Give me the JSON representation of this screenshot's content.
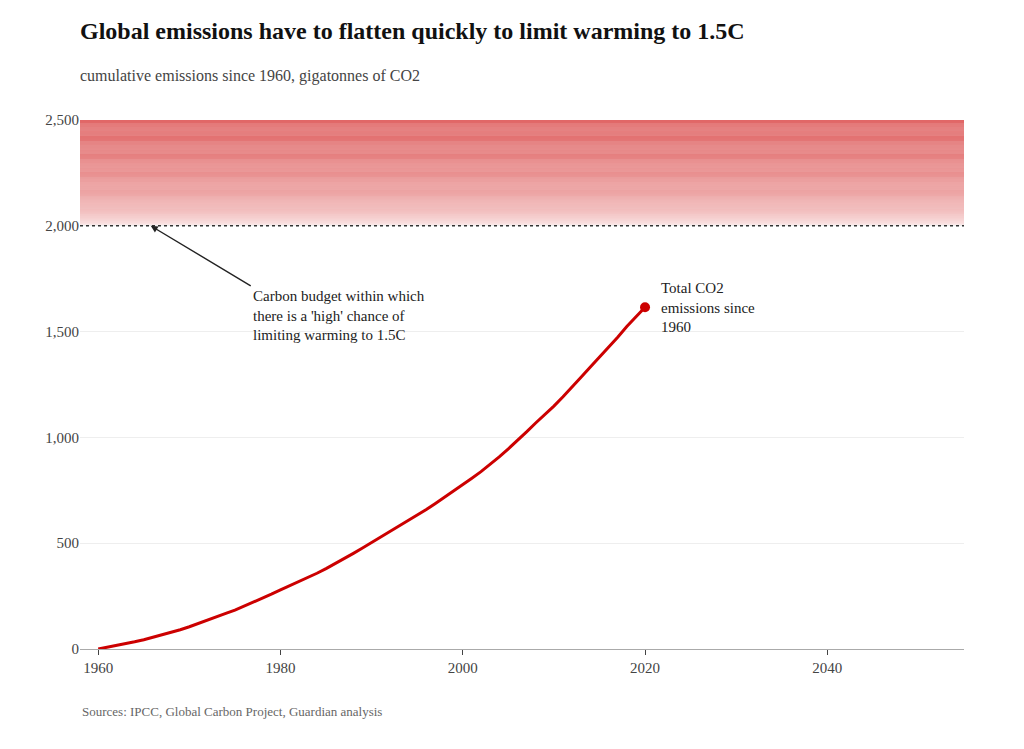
{
  "chart_data": {
    "type": "line",
    "title": "Global emissions have to flatten quickly to limit warming to 1.5C",
    "subtitle": "cumulative emissions since 1960, gigatonnes of CO2",
    "source": "Sources: IPCC, Global Carbon Project, Guardian analysis",
    "x": [
      1960,
      1961,
      1962,
      1963,
      1964,
      1965,
      1966,
      1967,
      1968,
      1969,
      1970,
      1971,
      1972,
      1973,
      1974,
      1975,
      1976,
      1977,
      1978,
      1979,
      1980,
      1981,
      1982,
      1983,
      1984,
      1985,
      1986,
      1987,
      1988,
      1989,
      1990,
      1991,
      1992,
      1993,
      1994,
      1995,
      1996,
      1997,
      1998,
      1999,
      2000,
      2001,
      2002,
      2003,
      2004,
      2005,
      2006,
      2007,
      2008,
      2009,
      2010,
      2011,
      2012,
      2013,
      2014,
      2015,
      2016,
      2017,
      2018,
      2019,
      2020
    ],
    "values": [
      0,
      8,
      16,
      25,
      34,
      44,
      55,
      66,
      78,
      91,
      105,
      120,
      135,
      152,
      168,
      184,
      202,
      220,
      239,
      259,
      279,
      298,
      317,
      337,
      358,
      380,
      403,
      427,
      452,
      477,
      503,
      528,
      553,
      578,
      604,
      631,
      659,
      688,
      717,
      746,
      776,
      807,
      838,
      872,
      908,
      946,
      985,
      1026,
      1068,
      1107,
      1148,
      1192,
      1237,
      1285,
      1333,
      1379,
      1425,
      1473,
      1524,
      1571,
      1615
    ],
    "color": "#cc0000",
    "budget_line": 2000,
    "red_zone": [
      2000,
      2500
    ],
    "annotation": "Carbon budget within which\nthere is a 'high' chance of\nlimiting warming to 1.5C",
    "curve_label": "Total CO2\nemissions since\n1960",
    "xlim": [
      1958,
      2055
    ],
    "ylim": [
      0,
      2500
    ],
    "xticks": [
      1960,
      1980,
      2000,
      2020,
      2040
    ],
    "yticks": [
      0,
      500,
      {
        "value": 1000,
        "label": "1,000"
      },
      {
        "value": 1500,
        "label": "1,500"
      },
      {
        "value": 2000,
        "label": "2,000"
      },
      {
        "value": 2500,
        "label": "2,500"
      }
    ],
    "grid": true
  }
}
